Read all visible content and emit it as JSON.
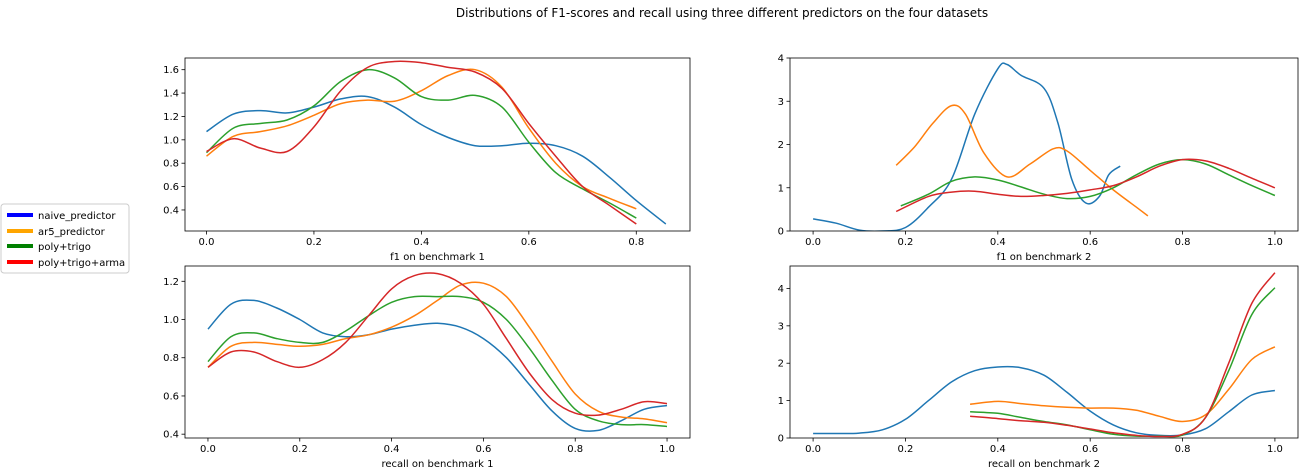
{
  "figure": {
    "title": "Distributions of F1-scores and recall using three different predictors on the four datasets"
  },
  "legend": {
    "placement": "left",
    "entries": [
      {
        "name": "naive_predictor",
        "color": "#0000ff"
      },
      {
        "name": "ar5_predictor",
        "color": "#ffa500"
      },
      {
        "name": "poly+trigo",
        "color": "#008000"
      },
      {
        "name": "poly+trigo+arma",
        "color": "#ff0000"
      }
    ]
  },
  "chart_data": [
    {
      "type": "line",
      "xlabel": "f1 on benchmark 1",
      "xlim": [
        -0.04,
        0.9
      ],
      "ylim": [
        0.22,
        1.7
      ],
      "xticks": [
        0.0,
        0.2,
        0.4,
        0.6,
        0.8
      ],
      "xtick_labels": [
        "0.0",
        "0.2",
        "0.4",
        "0.6",
        "0.8"
      ],
      "yticks": [
        0.4,
        0.6,
        0.8,
        1.0,
        1.2,
        1.4,
        1.6
      ],
      "ytick_labels": [
        "0.4",
        "0.6",
        "0.8",
        "1.0",
        "1.2",
        "1.4",
        "1.6"
      ],
      "series": [
        {
          "color": "#1f77b4",
          "x": [
            0.0,
            0.05,
            0.1,
            0.15,
            0.2,
            0.25,
            0.3,
            0.35,
            0.4,
            0.45,
            0.5,
            0.55,
            0.6,
            0.65,
            0.7,
            0.75,
            0.8,
            0.855
          ],
          "y": [
            1.07,
            1.22,
            1.25,
            1.23,
            1.28,
            1.35,
            1.37,
            1.28,
            1.13,
            1.02,
            0.95,
            0.95,
            0.97,
            0.95,
            0.86,
            0.68,
            0.48,
            0.28
          ]
        },
        {
          "color": "#ff7f0e",
          "x": [
            0.0,
            0.05,
            0.1,
            0.15,
            0.2,
            0.25,
            0.3,
            0.35,
            0.4,
            0.45,
            0.5,
            0.55,
            0.6,
            0.65,
            0.7,
            0.75,
            0.8
          ],
          "y": [
            0.86,
            1.03,
            1.07,
            1.12,
            1.21,
            1.31,
            1.34,
            1.33,
            1.42,
            1.55,
            1.6,
            1.45,
            1.1,
            0.8,
            0.6,
            0.5,
            0.41
          ]
        },
        {
          "color": "#2ca02c",
          "x": [
            0.0,
            0.05,
            0.1,
            0.15,
            0.2,
            0.25,
            0.3,
            0.35,
            0.4,
            0.45,
            0.5,
            0.55,
            0.6,
            0.65,
            0.7,
            0.75,
            0.8
          ],
          "y": [
            0.89,
            1.1,
            1.14,
            1.17,
            1.29,
            1.5,
            1.6,
            1.53,
            1.37,
            1.34,
            1.38,
            1.28,
            0.98,
            0.72,
            0.58,
            0.46,
            0.33
          ]
        },
        {
          "color": "#d62728",
          "x": [
            0.0,
            0.05,
            0.1,
            0.15,
            0.2,
            0.25,
            0.3,
            0.35,
            0.4,
            0.45,
            0.5,
            0.55,
            0.6,
            0.65,
            0.7,
            0.75,
            0.8
          ],
          "y": [
            0.9,
            1.01,
            0.93,
            0.9,
            1.11,
            1.42,
            1.62,
            1.67,
            1.66,
            1.62,
            1.58,
            1.44,
            1.14,
            0.86,
            0.6,
            0.44,
            0.28
          ]
        }
      ]
    },
    {
      "type": "line",
      "xlabel": "f1 on benchmark 2",
      "xlim": [
        -0.05,
        1.05
      ],
      "ylim": [
        0,
        4.0
      ],
      "xticks": [
        0.0,
        0.2,
        0.4,
        0.6,
        0.8,
        1.0
      ],
      "xtick_labels": [
        "0.0",
        "0.2",
        "0.4",
        "0.6",
        "0.8",
        "1.0"
      ],
      "yticks": [
        0,
        1,
        2,
        3,
        4
      ],
      "ytick_labels": [
        "0",
        "1",
        "2",
        "3",
        "4"
      ],
      "series": [
        {
          "color": "#1f77b4",
          "x": [
            0.0,
            0.05,
            0.1,
            0.15,
            0.2,
            0.25,
            0.3,
            0.35,
            0.4,
            0.42,
            0.45,
            0.5,
            0.53,
            0.56,
            0.59,
            0.62,
            0.64,
            0.665
          ],
          "y": [
            0.28,
            0.18,
            0.02,
            0.0,
            0.08,
            0.55,
            1.2,
            2.7,
            3.75,
            3.85,
            3.6,
            3.3,
            2.5,
            1.2,
            0.65,
            0.8,
            1.3,
            1.5
          ]
        },
        {
          "color": "#ff7f0e",
          "x": [
            0.18,
            0.22,
            0.26,
            0.3,
            0.33,
            0.37,
            0.42,
            0.47,
            0.52,
            0.55,
            0.6,
            0.65,
            0.7,
            0.725
          ],
          "y": [
            1.52,
            1.95,
            2.5,
            2.9,
            2.7,
            1.8,
            1.25,
            1.55,
            1.9,
            1.85,
            1.4,
            0.95,
            0.55,
            0.35
          ]
        },
        {
          "color": "#2ca02c",
          "x": [
            0.19,
            0.25,
            0.3,
            0.35,
            0.4,
            0.45,
            0.5,
            0.55,
            0.6,
            0.65,
            0.7,
            0.75,
            0.8,
            0.85,
            0.9,
            0.95,
            1.0
          ],
          "y": [
            0.58,
            0.85,
            1.15,
            1.25,
            1.18,
            1.02,
            0.85,
            0.75,
            0.8,
            1.0,
            1.3,
            1.55,
            1.65,
            1.55,
            1.3,
            1.05,
            0.82
          ]
        },
        {
          "color": "#d62728",
          "x": [
            0.18,
            0.25,
            0.3,
            0.35,
            0.4,
            0.45,
            0.5,
            0.55,
            0.6,
            0.65,
            0.7,
            0.75,
            0.8,
            0.85,
            0.9,
            0.95,
            1.0
          ],
          "y": [
            0.45,
            0.8,
            0.9,
            0.92,
            0.85,
            0.8,
            0.82,
            0.87,
            0.95,
            1.05,
            1.25,
            1.5,
            1.65,
            1.62,
            1.45,
            1.22,
            1.0
          ]
        }
      ]
    },
    {
      "type": "line",
      "xlabel": "recall on benchmark 1",
      "xlim": [
        -0.05,
        1.05
      ],
      "ylim": [
        0.38,
        1.28
      ],
      "xticks": [
        0.0,
        0.2,
        0.4,
        0.6,
        0.8,
        1.0
      ],
      "xtick_labels": [
        "0.0",
        "0.2",
        "0.4",
        "0.6",
        "0.8",
        "1.0"
      ],
      "yticks": [
        0.4,
        0.6,
        0.8,
        1.0,
        1.2
      ],
      "ytick_labels": [
        "0.4",
        "0.6",
        "0.8",
        "1.0",
        "1.2"
      ],
      "series": [
        {
          "color": "#1f77b4",
          "x": [
            0.0,
            0.05,
            0.1,
            0.15,
            0.2,
            0.25,
            0.3,
            0.35,
            0.4,
            0.45,
            0.5,
            0.55,
            0.6,
            0.65,
            0.7,
            0.75,
            0.8,
            0.85,
            0.9,
            0.95,
            1.0
          ],
          "y": [
            0.95,
            1.08,
            1.1,
            1.06,
            1.0,
            0.93,
            0.91,
            0.92,
            0.95,
            0.97,
            0.98,
            0.96,
            0.9,
            0.8,
            0.66,
            0.52,
            0.43,
            0.42,
            0.47,
            0.53,
            0.55
          ]
        },
        {
          "color": "#ff7f0e",
          "x": [
            0.0,
            0.05,
            0.1,
            0.15,
            0.2,
            0.25,
            0.3,
            0.35,
            0.4,
            0.45,
            0.5,
            0.55,
            0.6,
            0.65,
            0.7,
            0.75,
            0.8,
            0.85,
            0.9,
            0.95,
            1.0
          ],
          "y": [
            0.75,
            0.86,
            0.88,
            0.87,
            0.86,
            0.87,
            0.9,
            0.92,
            0.96,
            1.02,
            1.1,
            1.18,
            1.19,
            1.12,
            0.96,
            0.78,
            0.61,
            0.52,
            0.49,
            0.48,
            0.46
          ]
        },
        {
          "color": "#2ca02c",
          "x": [
            0.0,
            0.05,
            0.1,
            0.15,
            0.2,
            0.25,
            0.3,
            0.35,
            0.4,
            0.45,
            0.5,
            0.55,
            0.6,
            0.65,
            0.7,
            0.75,
            0.8,
            0.85,
            0.9,
            0.95,
            1.0
          ],
          "y": [
            0.78,
            0.91,
            0.93,
            0.9,
            0.88,
            0.88,
            0.94,
            1.02,
            1.09,
            1.12,
            1.12,
            1.12,
            1.09,
            1.0,
            0.85,
            0.68,
            0.53,
            0.47,
            0.45,
            0.45,
            0.44
          ]
        },
        {
          "color": "#d62728",
          "x": [
            0.0,
            0.05,
            0.1,
            0.15,
            0.2,
            0.25,
            0.3,
            0.35,
            0.4,
            0.45,
            0.5,
            0.55,
            0.6,
            0.65,
            0.7,
            0.75,
            0.8,
            0.85,
            0.9,
            0.95,
            1.0
          ],
          "y": [
            0.75,
            0.83,
            0.83,
            0.78,
            0.75,
            0.79,
            0.88,
            1.02,
            1.16,
            1.23,
            1.24,
            1.19,
            1.08,
            0.9,
            0.72,
            0.58,
            0.51,
            0.5,
            0.53,
            0.57,
            0.56
          ]
        }
      ]
    },
    {
      "type": "line",
      "xlabel": "recall on benchmark 2",
      "xlim": [
        -0.05,
        1.05
      ],
      "ylim": [
        0,
        4.6
      ],
      "xticks": [
        0.0,
        0.2,
        0.4,
        0.6,
        0.8,
        1.0
      ],
      "xtick_labels": [
        "0.0",
        "0.2",
        "0.4",
        "0.6",
        "0.8",
        "1.0"
      ],
      "yticks": [
        0,
        1,
        2,
        3,
        4
      ],
      "ytick_labels": [
        "0",
        "1",
        "2",
        "3",
        "4"
      ],
      "series": [
        {
          "color": "#1f77b4",
          "x": [
            0.0,
            0.05,
            0.1,
            0.15,
            0.2,
            0.25,
            0.3,
            0.35,
            0.4,
            0.45,
            0.5,
            0.55,
            0.6,
            0.65,
            0.7,
            0.75,
            0.8,
            0.85,
            0.9,
            0.95,
            1.0
          ],
          "y": [
            0.12,
            0.12,
            0.13,
            0.22,
            0.5,
            1.0,
            1.5,
            1.8,
            1.9,
            1.88,
            1.68,
            1.22,
            0.72,
            0.35,
            0.14,
            0.07,
            0.08,
            0.25,
            0.7,
            1.15,
            1.27
          ]
        },
        {
          "color": "#ff7f0e",
          "x": [
            0.34,
            0.4,
            0.45,
            0.5,
            0.55,
            0.6,
            0.65,
            0.7,
            0.75,
            0.8,
            0.85,
            0.9,
            0.95,
            1.0
          ],
          "y": [
            0.9,
            0.98,
            0.92,
            0.86,
            0.82,
            0.8,
            0.8,
            0.74,
            0.58,
            0.44,
            0.62,
            1.3,
            2.1,
            2.44
          ]
        },
        {
          "color": "#2ca02c",
          "x": [
            0.34,
            0.4,
            0.45,
            0.5,
            0.55,
            0.6,
            0.65,
            0.7,
            0.75,
            0.8,
            0.85,
            0.9,
            0.95,
            1.0
          ],
          "y": [
            0.7,
            0.66,
            0.55,
            0.44,
            0.35,
            0.22,
            0.1,
            0.05,
            0.05,
            0.08,
            0.55,
            1.8,
            3.3,
            4.02
          ]
        },
        {
          "color": "#d62728",
          "x": [
            0.34,
            0.4,
            0.45,
            0.5,
            0.55,
            0.6,
            0.65,
            0.7,
            0.75,
            0.8,
            0.85,
            0.9,
            0.95,
            1.0
          ],
          "y": [
            0.58,
            0.52,
            0.46,
            0.42,
            0.34,
            0.24,
            0.14,
            0.07,
            0.04,
            0.1,
            0.55,
            2.0,
            3.6,
            4.42
          ]
        }
      ]
    }
  ]
}
